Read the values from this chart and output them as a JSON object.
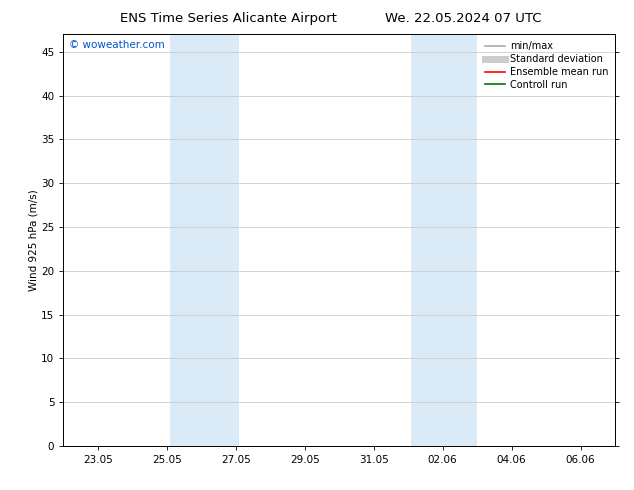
{
  "title": "ENS Time Series Alicante Airport",
  "title_right": "We. 22.05.2024 07 UTC",
  "ylabel": "Wind 925 hPa (m/s)",
  "watermark": "© woweather.com",
  "bg_color": "#ffffff",
  "plot_bg_color": "#ffffff",
  "band_color": "#daeaf7",
  "x_tick_labels": [
    "23.05",
    "25.05",
    "27.05",
    "29.05",
    "31.05",
    "02.06",
    "04.06",
    "06.06"
  ],
  "ylim": [
    0,
    47
  ],
  "yticks": [
    0,
    5,
    10,
    15,
    20,
    25,
    30,
    35,
    40,
    45
  ],
  "legend_entries": [
    {
      "label": "min/max",
      "color": "#aaaaaa",
      "lw": 1.2,
      "style": "solid"
    },
    {
      "label": "Standard deviation",
      "color": "#cccccc",
      "lw": 5,
      "style": "solid"
    },
    {
      "label": "Ensemble mean run",
      "color": "#ff0000",
      "lw": 1.2,
      "style": "solid"
    },
    {
      "label": "Controll run",
      "color": "#007700",
      "lw": 1.2,
      "style": "solid"
    }
  ],
  "grid_color": "#cccccc",
  "tick_color": "#000000",
  "axis_color": "#000000",
  "watermark_color": "#0055cc",
  "font_size": 7.5,
  "title_font_size": 9.5
}
